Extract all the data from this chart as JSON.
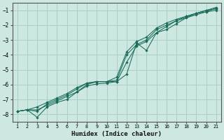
{
  "xlabel": "Humidex (Indice chaleur)",
  "xlim": [
    0.5,
    21.5
  ],
  "ylim": [
    -8.5,
    -0.5
  ],
  "yticks": [
    -8,
    -7,
    -6,
    -5,
    -4,
    -3,
    -2,
    -1
  ],
  "xticks": [
    1,
    2,
    3,
    4,
    5,
    6,
    7,
    8,
    9,
    10,
    11,
    12,
    13,
    14,
    15,
    16,
    17,
    18,
    19,
    20,
    21
  ],
  "bg_color": "#cce8e0",
  "grid_color": "#aacfc8",
  "line_color": "#1a6b5a",
  "lines": [
    {
      "x": [
        1,
        2,
        3,
        4,
        5,
        6,
        7,
        8,
        9,
        10,
        11,
        12,
        13,
        14,
        15,
        16,
        17,
        18,
        19,
        20,
        21
      ],
      "y": [
        -7.8,
        -7.7,
        -8.2,
        -7.5,
        -7.2,
        -7.0,
        -6.5,
        -6.0,
        -5.8,
        -5.8,
        -5.8,
        -5.3,
        -3.2,
        -3.7,
        -2.5,
        -2.3,
        -1.9,
        -1.5,
        -1.2,
        -1.1,
        -1.0
      ]
    },
    {
      "x": [
        1,
        2,
        3,
        4,
        5,
        6,
        7,
        8,
        9,
        10,
        11,
        12,
        13,
        14,
        15,
        16,
        17,
        18,
        19,
        20,
        21
      ],
      "y": [
        -7.8,
        -7.7,
        -7.8,
        -7.3,
        -7.0,
        -6.7,
        -6.3,
        -5.9,
        -5.8,
        -5.8,
        -5.7,
        -4.0,
        -3.3,
        -3.0,
        -2.3,
        -2.0,
        -1.7,
        -1.4,
        -1.2,
        -1.0,
        -0.9
      ]
    },
    {
      "x": [
        1,
        2,
        3,
        4,
        5,
        6,
        7,
        8,
        9,
        10,
        11,
        12,
        13,
        14,
        15,
        16,
        17,
        18,
        19,
        20,
        21
      ],
      "y": [
        -7.8,
        -7.7,
        -7.5,
        -7.2,
        -6.9,
        -6.6,
        -6.2,
        -5.9,
        -5.8,
        -5.8,
        -5.5,
        -3.8,
        -3.1,
        -2.8,
        -2.2,
        -1.85,
        -1.6,
        -1.4,
        -1.2,
        -1.0,
        -0.8
      ]
    },
    {
      "x": [
        1,
        2,
        3,
        4,
        5,
        6,
        7,
        8,
        9,
        10,
        11,
        12,
        13,
        14,
        15,
        16,
        17,
        18,
        19,
        20,
        21
      ],
      "y": [
        -7.8,
        -7.7,
        -7.7,
        -7.4,
        -7.1,
        -6.8,
        -6.5,
        -6.1,
        -5.95,
        -5.9,
        -5.8,
        -4.5,
        -3.4,
        -3.1,
        -2.5,
        -2.1,
        -1.7,
        -1.5,
        -1.3,
        -1.1,
        -0.85
      ]
    }
  ]
}
